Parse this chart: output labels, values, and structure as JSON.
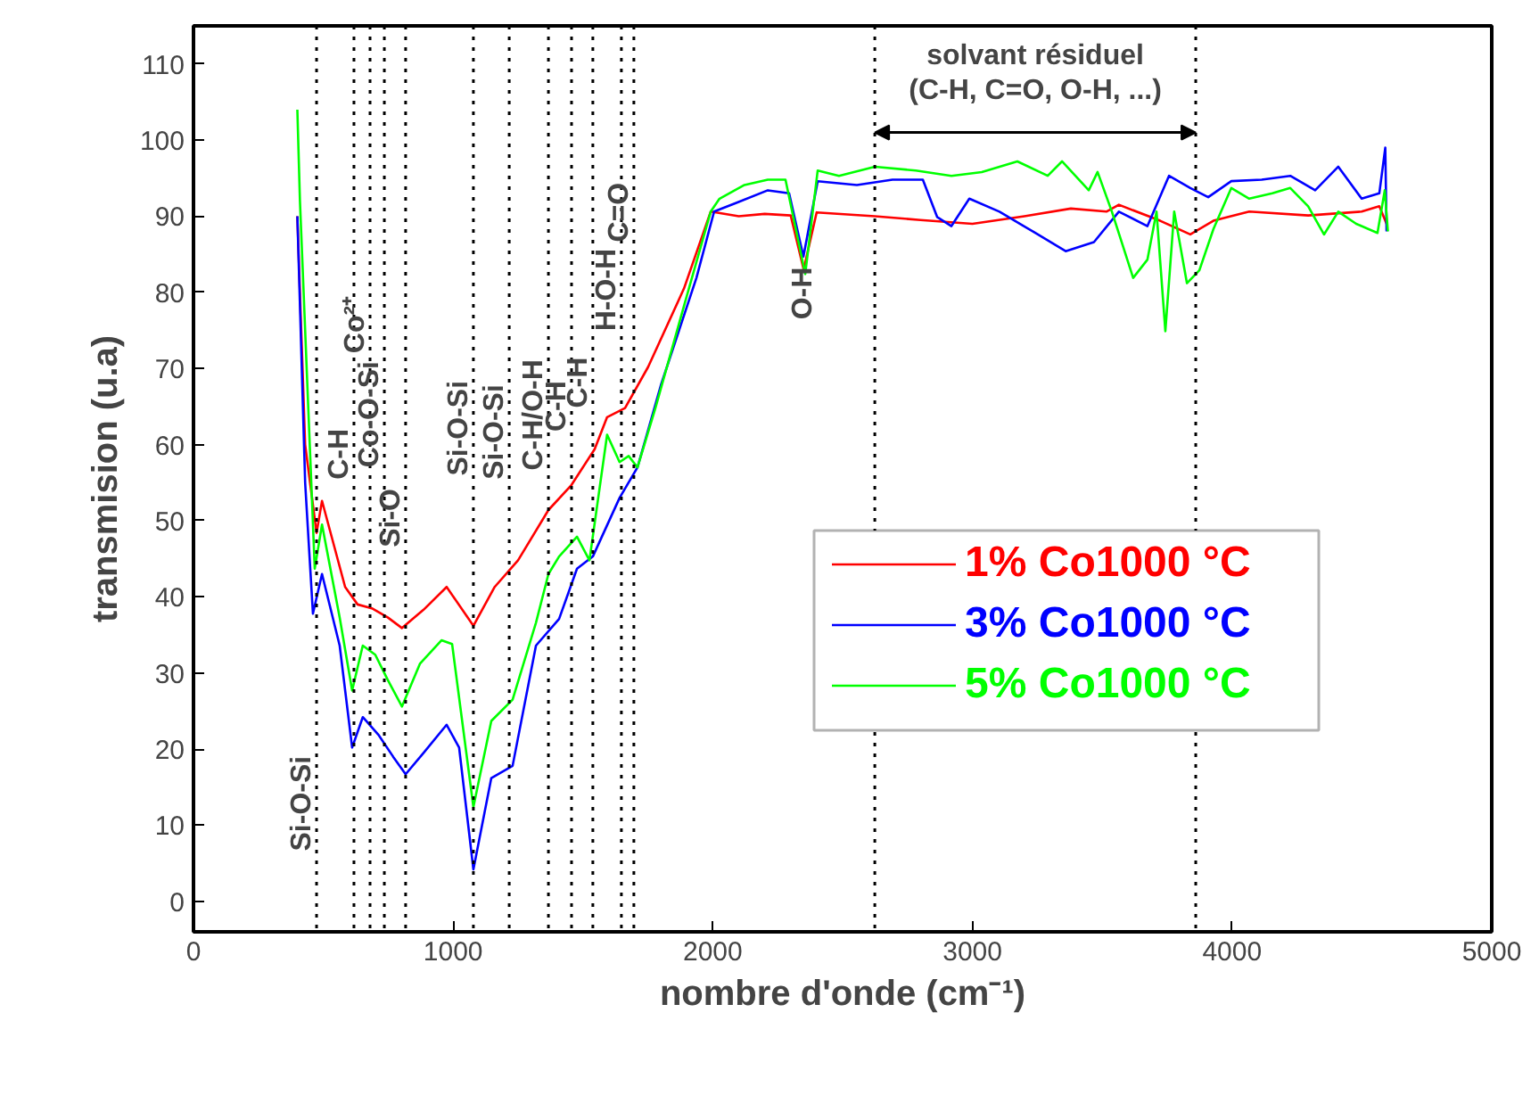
{
  "chart_data": {
    "type": "line",
    "xlabel": "nombre d'onde (cm⁻¹)",
    "ylabel": "transmision (u.a)",
    "xlim": [
      0,
      5000
    ],
    "xticks": [
      0,
      1000,
      2000,
      3000,
      4000,
      5000
    ],
    "ylim": [
      -4,
      115
    ],
    "yticks": [
      0,
      10,
      20,
      30,
      40,
      50,
      60,
      70,
      80,
      90,
      100,
      110
    ],
    "grid": false,
    "legend": "right",
    "marker": "none",
    "line_style": "solid",
    "series": [
      {
        "name": "1% Co1000 °C",
        "color": "#ff0000",
        "x": [
          400,
          430,
          474,
          495,
          584,
          632,
          687,
          748,
          803,
          886,
          975,
          1078,
          1160,
          1250,
          1367,
          1456,
          1545,
          1593,
          1662,
          1751,
          1889,
          1992,
          2100,
          2200,
          2300,
          2350,
          2400,
          2624,
          2800,
          3000,
          3200,
          3379,
          3516,
          3564,
          3723,
          3839,
          3928,
          4066,
          4293,
          4499,
          4567,
          4595
        ],
        "values": [
          90,
          60,
          48.4,
          52.6,
          41.3,
          39,
          38.5,
          37.3,
          35.9,
          38.3,
          41.3,
          36.2,
          41.3,
          44.8,
          51.4,
          54.7,
          59.4,
          63.6,
          64.8,
          70.2,
          80.5,
          90.6,
          90,
          90.3,
          90.1,
          83,
          90.5,
          90,
          89.5,
          89,
          90,
          91,
          90.6,
          91.5,
          89.4,
          87.6,
          89.4,
          90.6,
          90.1,
          90.6,
          91.3,
          89
        ]
      },
      {
        "name": "3% Co1000 °C",
        "color": "#0000ff",
        "x": [
          400,
          430,
          460,
          495,
          563,
          611,
          652,
          714,
          769,
          817,
          886,
          975,
          1023,
          1078,
          1147,
          1229,
          1319,
          1408,
          1477,
          1538,
          1641,
          1710,
          1800,
          1937,
          2005,
          2095,
          2212,
          2294,
          2349,
          2404,
          2555,
          2692,
          2809,
          2864,
          2919,
          2988,
          3104,
          3242,
          3359,
          3468,
          3564,
          3674,
          3757,
          3839,
          3908,
          3997,
          4114,
          4224,
          4320,
          4409,
          4499,
          4567,
          4590,
          4595
        ],
        "values": [
          90,
          55,
          37.8,
          43,
          33.6,
          20.2,
          24.2,
          21.8,
          19,
          16.7,
          19.5,
          23.2,
          20.2,
          4.2,
          16.2,
          17.8,
          33.6,
          37.1,
          43.7,
          45.3,
          53,
          57,
          67.8,
          81.9,
          90.6,
          91.8,
          93.4,
          93,
          84.7,
          94.6,
          94.1,
          94.8,
          94.8,
          89.9,
          88.7,
          92.3,
          90.6,
          87.8,
          85.4,
          86.6,
          90.6,
          88.7,
          95.3,
          93.7,
          92.5,
          94.6,
          94.8,
          95.3,
          93.4,
          96.5,
          92.3,
          93,
          99,
          88
        ]
      },
      {
        "name": "5% Co1000 °C",
        "color": "#00ff00",
        "x": [
          400,
          410,
          467,
          495,
          563,
          611,
          652,
          700,
          748,
          803,
          872,
          955,
          996,
          1078,
          1147,
          1229,
          1319,
          1367,
          1408,
          1477,
          1525,
          1593,
          1641,
          1676,
          1710,
          1779,
          1889,
          1992,
          2026,
          2122,
          2212,
          2280,
          2356,
          2404,
          2486,
          2624,
          2782,
          2919,
          3036,
          3173,
          3290,
          3345,
          3448,
          3482,
          3537,
          3619,
          3674,
          3709,
          3743,
          3777,
          3826,
          3874,
          3928,
          3997,
          4066,
          4155,
          4224,
          4293,
          4354,
          4409,
          4478,
          4560,
          4588,
          4600
        ],
        "values": [
          104,
          92,
          43.7,
          49.5,
          37.3,
          27.7,
          33.6,
          32.4,
          29.1,
          25.6,
          31.2,
          34.3,
          33.8,
          12.4,
          23.7,
          26.5,
          36.6,
          43,
          45.3,
          47.9,
          44.8,
          61.3,
          57.7,
          58.5,
          57,
          64.8,
          78.2,
          90.6,
          92.3,
          94.1,
          94.8,
          94.8,
          82.4,
          96,
          95.3,
          96.5,
          96,
          95.3,
          95.8,
          97.2,
          95.3,
          97.2,
          93.4,
          95.8,
          90.6,
          81.9,
          84.3,
          90.6,
          74.9,
          90.6,
          81.2,
          82.9,
          88.3,
          93.7,
          92.3,
          93,
          93.7,
          91.3,
          87.6,
          90.6,
          89,
          87.8,
          93.4,
          88
        ]
      }
    ],
    "ref_lines": [
      {
        "axis": "x",
        "value": 474,
        "line_style": "dotted"
      },
      {
        "axis": "x",
        "value": 618,
        "line_style": "dotted"
      },
      {
        "axis": "x",
        "value": 680,
        "line_style": "dotted"
      },
      {
        "axis": "x",
        "value": 735,
        "line_style": "dotted"
      },
      {
        "axis": "x",
        "value": 817,
        "line_style": "dotted"
      },
      {
        "axis": "x",
        "value": 1078,
        "line_style": "dotted"
      },
      {
        "axis": "x",
        "value": 1216,
        "line_style": "dotted"
      },
      {
        "axis": "x",
        "value": 1367,
        "line_style": "dotted"
      },
      {
        "axis": "x",
        "value": 1456,
        "line_style": "dotted"
      },
      {
        "axis": "x",
        "value": 1538,
        "line_style": "dotted"
      },
      {
        "axis": "x",
        "value": 1648,
        "line_style": "dotted"
      },
      {
        "axis": "x",
        "value": 1696,
        "line_style": "dotted"
      },
      {
        "axis": "x",
        "value": 2624,
        "line_style": "dotted"
      },
      {
        "axis": "x",
        "value": 3860,
        "line_style": "dotted"
      }
    ],
    "annotations": [
      {
        "text": "Si-O-Si",
        "x": 474,
        "y": 6.6
      },
      {
        "text": "C-H",
        "x": 618,
        "y": 55.4
      },
      {
        "text": "Co²⁺",
        "x": 680,
        "y": 72
      },
      {
        "text": "Co-O-Si",
        "x": 735,
        "y": 57
      },
      {
        "text": "Si-O",
        "x": 817,
        "y": 46.5
      },
      {
        "text": "Si-O-Si",
        "x": 1078,
        "y": 55.9
      },
      {
        "text": "Si-O-Si",
        "x": 1216,
        "y": 55.4
      },
      {
        "text": "C-H/O-H",
        "x": 1367,
        "y": 56.6
      },
      {
        "text": "C-H",
        "x": 1456,
        "y": 61.7
      },
      {
        "text": "C-H",
        "x": 1538,
        "y": 64.8
      },
      {
        "text": "H-O-H",
        "x": 1648,
        "y": 74.9
      },
      {
        "text": "C=O",
        "x": 1696,
        "y": 86.6
      },
      {
        "text": "O-H",
        "x": 2349,
        "y": 84.7
      },
      "solvant résiduel",
      "(C-H, C=O, O-H, ...)"
    ]
  }
}
